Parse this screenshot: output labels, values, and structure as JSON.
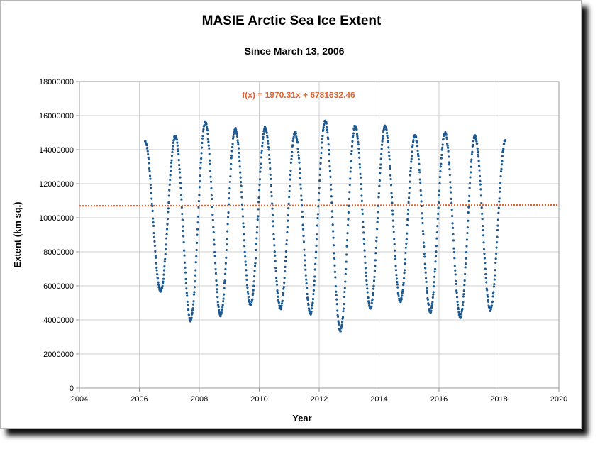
{
  "chart_data": {
    "type": "scatter",
    "title": "MASIE Arctic Sea Ice Extent",
    "subtitle": "Since March 13, 2006",
    "xlabel": "Year",
    "ylabel": "Extent  (km sq.)",
    "xlim": [
      2004,
      2020
    ],
    "ylim": [
      0,
      18000000
    ],
    "xticks": [
      "2004",
      "2006",
      "2008",
      "2010",
      "2012",
      "2014",
      "2016",
      "2018",
      "2020"
    ],
    "yticks": [
      "0",
      "2000000",
      "4000000",
      "6000000",
      "8000000",
      "10000000",
      "12000000",
      "14000000",
      "16000000",
      "18000000"
    ],
    "grid": true,
    "legend": "none",
    "start_year": 2006.19,
    "end_year": 2018.22,
    "annual_maxima": [
      {
        "year": 2007,
        "value": 14800000
      },
      {
        "year": 2008,
        "value": 15600000
      },
      {
        "year": 2009,
        "value": 15200000
      },
      {
        "year": 2010,
        "value": 15300000
      },
      {
        "year": 2011,
        "value": 15000000
      },
      {
        "year": 2012,
        "value": 15700000
      },
      {
        "year": 2013,
        "value": 15400000
      },
      {
        "year": 2014,
        "value": 15400000
      },
      {
        "year": 2015,
        "value": 14800000
      },
      {
        "year": 2016,
        "value": 15000000
      },
      {
        "year": 2017,
        "value": 14800000
      }
    ],
    "annual_minima": [
      {
        "year": 2006,
        "value": 5700000
      },
      {
        "year": 2007,
        "value": 4000000
      },
      {
        "year": 2008,
        "value": 4300000
      },
      {
        "year": 2009,
        "value": 4900000
      },
      {
        "year": 2010,
        "value": 4700000
      },
      {
        "year": 2011,
        "value": 4400000
      },
      {
        "year": 2012,
        "value": 3400000
      },
      {
        "year": 2013,
        "value": 4700000
      },
      {
        "year": 2014,
        "value": 5100000
      },
      {
        "year": 2015,
        "value": 4500000
      },
      {
        "year": 2016,
        "value": 4200000
      },
      {
        "year": 2017,
        "value": 4600000
      }
    ],
    "start_value": 14500000,
    "end_value": 14600000,
    "trendline": {
      "label": "f(x) = 1970.31x + 6781632.46",
      "start_value": 10700000,
      "end_value": 10750000
    },
    "colors": {
      "series": "#1c5a91",
      "trend": "#e2642f",
      "grid": "#cfcfcf",
      "axis": "#999999"
    }
  }
}
